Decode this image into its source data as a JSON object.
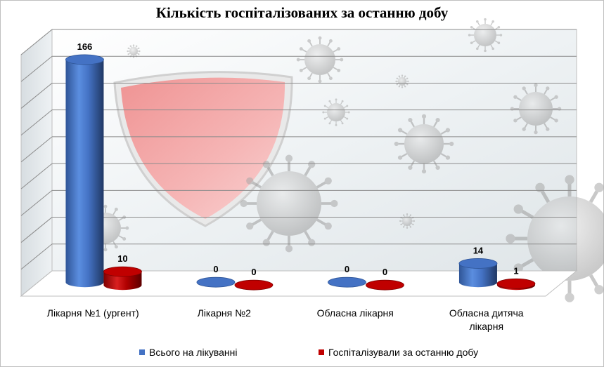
{
  "title": "Кількість госпіталізованих за останню добу",
  "colors": {
    "series1": "#4472C4",
    "series2": "#C00000",
    "grid": "#8c8c8c"
  },
  "icons": [
    "virus-icon",
    "shield-icon"
  ],
  "chart_data": {
    "type": "bar",
    "title": "Кількість госпіталізованих за останню добу",
    "categories": [
      "Лікарня №1 (ургент)",
      "Лікарня №2",
      "Обласна лікарня",
      "Обласна дитяча лікарня"
    ],
    "category_lines": [
      [
        "Лікарня №1 (ургент)"
      ],
      [
        "Лікарня №2"
      ],
      [
        "Обласна лікарня"
      ],
      [
        "Обласна дитяча",
        "лікарня"
      ]
    ],
    "series": [
      {
        "name": "Всього на лікуванні",
        "values": [
          166,
          0,
          0,
          14
        ]
      },
      {
        "name": "Госпіталізували за останню добу",
        "values": [
          10,
          0,
          0,
          1
        ]
      }
    ],
    "ylim": [
      0,
      180
    ],
    "grid": true,
    "legend": "bottom",
    "style": "3d-cylinder"
  }
}
